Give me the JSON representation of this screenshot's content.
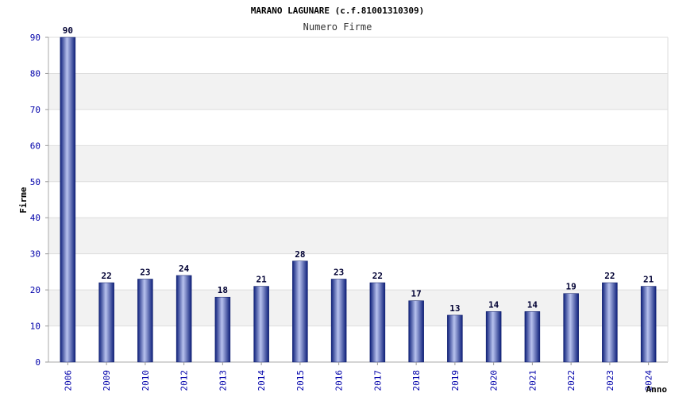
{
  "chart_data": {
    "type": "bar",
    "title": "MARANO LAGUNARE (c.f.81001310309)",
    "subtitle": "Numero Firme",
    "xlabel": "Anno",
    "ylabel": "Firme",
    "categories": [
      "2006",
      "2009",
      "2010",
      "2012",
      "2013",
      "2014",
      "2015",
      "2016",
      "2017",
      "2018",
      "2019",
      "2020",
      "2021",
      "2022",
      "2023",
      "2024"
    ],
    "values": [
      90,
      22,
      23,
      24,
      18,
      21,
      28,
      23,
      22,
      17,
      13,
      14,
      14,
      19,
      22,
      21
    ],
    "ylim": [
      0,
      90
    ],
    "yticks": [
      0,
      10,
      20,
      30,
      40,
      50,
      60,
      70,
      80,
      90
    ],
    "grid": true,
    "colors": {
      "bar_dark": "#0d1f7a",
      "bar_light": "#b8c2ee",
      "band": "#f2f2f2",
      "gridline": "#dddddd",
      "tick_text": "#0000aa"
    }
  }
}
